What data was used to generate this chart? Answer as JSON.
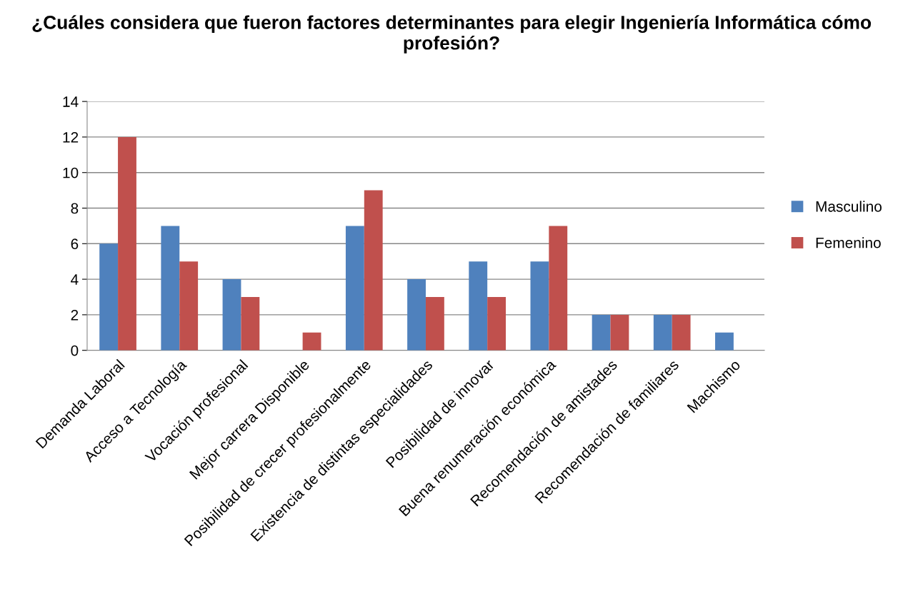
{
  "chart_data": {
    "type": "bar",
    "title": "¿Cuáles considera que fueron factores determinantes para elegir Ingeniería Informática cómo profesión?",
    "categories": [
      "Demanda Laboral",
      "Acceso a Tecnología",
      "Vocación profesional",
      "Mejor carrera Disponible",
      "Posibilidad de crecer profesionalmente",
      "Existencia de distintas especialidades",
      "Posibilidad de innovar",
      "Buena renumeración económica",
      "Recomendación de amistades",
      "Recomendación de familiares",
      "Machismo"
    ],
    "series": [
      {
        "name": "Masculino",
        "color": "#4f81bd",
        "values": [
          6,
          7,
          4,
          0,
          7,
          4,
          5,
          5,
          2,
          2,
          1
        ]
      },
      {
        "name": "Femenino",
        "color": "#c0504d",
        "values": [
          12,
          5,
          3,
          1,
          9,
          3,
          3,
          7,
          2,
          2,
          0
        ]
      }
    ],
    "ylim": [
      0,
      14
    ],
    "yticks": [
      0,
      2,
      4,
      6,
      8,
      10,
      12,
      14
    ],
    "grid": "y",
    "legend": "right"
  }
}
